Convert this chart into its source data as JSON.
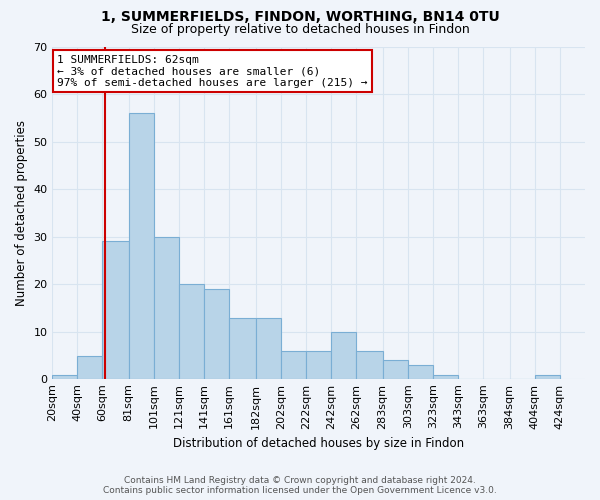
{
  "title": "1, SUMMERFIELDS, FINDON, WORTHING, BN14 0TU",
  "subtitle": "Size of property relative to detached houses in Findon",
  "xlabel": "Distribution of detached houses by size in Findon",
  "ylabel": "Number of detached properties",
  "bar_color": "#b8d4e8",
  "bar_edge_color": "#7aaed4",
  "background_color": "#f0f4fa",
  "plot_bg_color": "#f0f4fa",
  "grid_color": "#d8e4f0",
  "bin_labels": [
    "20sqm",
    "40sqm",
    "60sqm",
    "81sqm",
    "101sqm",
    "121sqm",
    "141sqm",
    "161sqm",
    "182sqm",
    "202sqm",
    "222sqm",
    "242sqm",
    "262sqm",
    "283sqm",
    "303sqm",
    "323sqm",
    "343sqm",
    "363sqm",
    "384sqm",
    "404sqm",
    "424sqm"
  ],
  "bin_edges": [
    20,
    40,
    60,
    81,
    101,
    121,
    141,
    161,
    182,
    202,
    222,
    242,
    262,
    283,
    303,
    323,
    343,
    363,
    384,
    404,
    424
  ],
  "bar_heights": [
    1,
    5,
    29,
    56,
    30,
    20,
    19,
    13,
    13,
    6,
    6,
    10,
    6,
    4,
    3,
    1,
    0,
    0,
    0,
    1
  ],
  "ylim": [
    0,
    70
  ],
  "yticks": [
    0,
    10,
    20,
    30,
    40,
    50,
    60,
    70
  ],
  "property_line_x": 62,
  "property_line_color": "#cc0000",
  "annotation_title": "1 SUMMERFIELDS: 62sqm",
  "annotation_line1": "← 3% of detached houses are smaller (6)",
  "annotation_line2": "97% of semi-detached houses are larger (215) →",
  "annotation_box_color": "#ffffff",
  "annotation_box_edge": "#cc0000",
  "footer_line1": "Contains HM Land Registry data © Crown copyright and database right 2024.",
  "footer_line2": "Contains public sector information licensed under the Open Government Licence v3.0."
}
